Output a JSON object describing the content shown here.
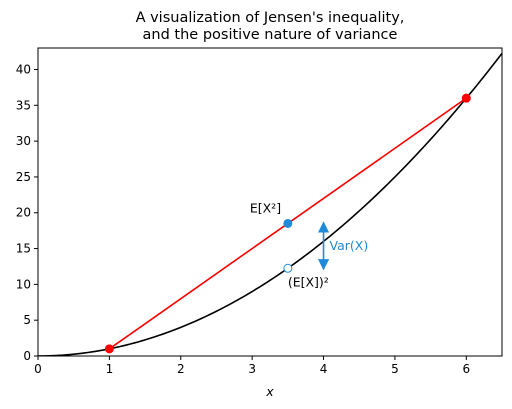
{
  "chart_data": {
    "type": "line",
    "title": "A visualization of Jensen's inequality,",
    "subtitle": "and the positive nature of variance",
    "xlabel": "x",
    "ylabel": "",
    "xlim": [
      0,
      6.5
    ],
    "ylim": [
      0,
      43
    ],
    "xticks": [
      0,
      1,
      2,
      3,
      4,
      5,
      6
    ],
    "yticks": [
      0,
      5,
      10,
      15,
      20,
      25,
      30,
      35,
      40
    ],
    "grid": false,
    "legend": "none",
    "series": [
      {
        "kind": "curve",
        "function": "x^2",
        "color": "#000000",
        "x": [
          0,
          0.5,
          1,
          1.5,
          2,
          2.5,
          3,
          3.5,
          4,
          4.5,
          5,
          5.5,
          6,
          6.5
        ],
        "y": [
          0,
          0.25,
          1,
          2.25,
          4,
          6.25,
          9,
          12.25,
          16,
          20.25,
          25,
          30.25,
          36,
          42.25
        ]
      },
      {
        "kind": "chord",
        "color": "#ff0000",
        "x": [
          1,
          6
        ],
        "y": [
          1,
          36
        ]
      }
    ],
    "points": [
      {
        "x": 1,
        "y": 1,
        "color": "#ff0000",
        "filled": true
      },
      {
        "x": 6,
        "y": 36,
        "color": "#ff0000",
        "filled": true
      },
      {
        "x": 3.5,
        "y": 18.5,
        "color": "#1f8bd8",
        "filled": true,
        "label": "E[X²]"
      },
      {
        "x": 3.5,
        "y": 12.25,
        "color": "#1f8bd8",
        "filled": false,
        "label": "(E[X])²"
      }
    ],
    "annotations": [
      {
        "text": "E[X²]",
        "x": 3.5,
        "y": 18.5,
        "color": "#000000"
      },
      {
        "text": "(E[X])²",
        "x": 3.5,
        "y": 12.25,
        "color": "#000000"
      },
      {
        "text": "Var(X)",
        "x": 4,
        "y_from": 12.25,
        "y_to": 18.5,
        "color": "#1f8bd8",
        "kind": "double-arrow"
      }
    ],
    "colors": {
      "curve": "#000000",
      "chord": "#ff0000",
      "accent": "#1f8bd8"
    }
  }
}
